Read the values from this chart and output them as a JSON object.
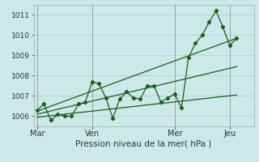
{
  "bg_color": "#cce8e8",
  "grid_color": "#aad4d4",
  "line_color": "#1e5c1e",
  "title": "Pression niveau de la mer( hPa )",
  "ylim": [
    1005.5,
    1011.5
  ],
  "yticks": [
    1006,
    1007,
    1008,
    1009,
    1010,
    1011
  ],
  "day_labels": [
    "Mar",
    "Ven",
    "Mer",
    "Jeu"
  ],
  "day_positions": [
    0,
    8,
    20,
    28
  ],
  "xlim": [
    -0.5,
    31.5
  ],
  "series1": [
    1006.3,
    1006.6,
    1005.8,
    1006.1,
    1006.0,
    1006.0,
    1006.6,
    1006.7,
    1007.7,
    1007.6,
    1006.9,
    1005.9,
    1006.85,
    1007.2,
    1006.9,
    1006.85,
    1007.5,
    1007.5,
    1006.7,
    1006.9,
    1007.1,
    1006.4,
    1008.9,
    1009.6,
    1010.0,
    1010.65,
    1011.2,
    1010.4,
    1009.5,
    1009.85
  ],
  "trend1_x": [
    0,
    29
  ],
  "trend1_y": [
    1006.25,
    1009.85
  ],
  "trend2_x": [
    0,
    29
  ],
  "trend2_y": [
    1005.95,
    1007.05
  ],
  "trend3_x": [
    0,
    29
  ],
  "trend3_y": [
    1006.1,
    1008.45
  ],
  "title_fontsize": 7.5,
  "ytick_fontsize": 6.5,
  "xtick_fontsize": 7.0
}
